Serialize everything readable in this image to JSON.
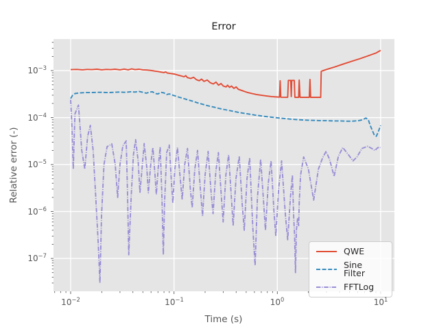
{
  "chart_data": {
    "type": "line",
    "title": "Error",
    "xlabel": "Time (s)",
    "ylabel": "Relative error (-)",
    "x_scale": "log",
    "y_scale": "log",
    "xlim": [
      0.00682,
      13.6
    ],
    "ylim": [
      2e-08,
      0.0047
    ],
    "grid": true,
    "legend_position": "lower right",
    "colors": {
      "figure_background": "#FFFFFF",
      "axes_background": "#E5E5E5",
      "grid": "#FFFFFF",
      "ticks": "#555555",
      "labels": "#555555",
      "title": "#1A1A1A",
      "legend_background": "#F1F1F1",
      "legend_border": "#CCCCCC",
      "legend_text": "#262626"
    },
    "x_tick_exponents": [
      -2,
      -1,
      0,
      1
    ],
    "y_tick_exponents": [
      -3,
      -4,
      -5,
      -6,
      -7
    ],
    "series": [
      {
        "name": "QWE",
        "color": "#E24A33",
        "linestyle": "solid",
        "points": [
          [
            0.01,
            0.00105
          ],
          [
            0.0115,
            0.00106
          ],
          [
            0.013,
            0.00104
          ],
          [
            0.0145,
            0.00106
          ],
          [
            0.016,
            0.00105
          ],
          [
            0.018,
            0.00107
          ],
          [
            0.02,
            0.00104
          ],
          [
            0.022,
            0.00106
          ],
          [
            0.0245,
            0.00105
          ],
          [
            0.027,
            0.00107
          ],
          [
            0.03,
            0.00104
          ],
          [
            0.033,
            0.00108
          ],
          [
            0.036,
            0.00104
          ],
          [
            0.039,
            0.00109
          ],
          [
            0.042,
            0.00105
          ],
          [
            0.046,
            0.00107
          ],
          [
            0.05,
            0.00104
          ],
          [
            0.055,
            0.00103
          ],
          [
            0.06,
            0.00101
          ],
          [
            0.065,
            0.00098
          ],
          [
            0.07,
            0.00096
          ],
          [
            0.075,
            0.00093
          ],
          [
            0.08,
            0.00091
          ],
          [
            0.083,
            0.00094
          ],
          [
            0.086,
            0.00089
          ],
          [
            0.09,
            0.00088
          ],
          [
            0.095,
            0.00086
          ],
          [
            0.1,
            0.00085
          ],
          [
            0.108,
            0.00081
          ],
          [
            0.115,
            0.00078
          ],
          [
            0.125,
            0.00074
          ],
          [
            0.13,
            0.00078
          ],
          [
            0.135,
            0.00071
          ],
          [
            0.145,
            0.00068
          ],
          [
            0.155,
            0.00072
          ],
          [
            0.165,
            0.00064
          ],
          [
            0.175,
            0.00061
          ],
          [
            0.185,
            0.00066
          ],
          [
            0.195,
            0.00059
          ],
          [
            0.21,
            0.00063
          ],
          [
            0.225,
            0.00055
          ],
          [
            0.24,
            0.00052
          ],
          [
            0.255,
            0.00057
          ],
          [
            0.27,
            0.00049
          ],
          [
            0.285,
            0.00053
          ],
          [
            0.3,
            0.00047
          ],
          [
            0.32,
            0.00045
          ],
          [
            0.33,
            0.00049
          ],
          [
            0.345,
            0.00044
          ],
          [
            0.36,
            0.00047
          ],
          [
            0.38,
            0.00042
          ],
          [
            0.4,
            0.00045
          ],
          [
            0.42,
            0.0004
          ],
          [
            0.45,
            0.00038
          ],
          [
            0.48,
            0.00036
          ],
          [
            0.52,
            0.00034
          ],
          [
            0.57,
            0.000325
          ],
          [
            0.63,
            0.00031
          ],
          [
            0.7,
            0.0003
          ],
          [
            0.78,
            0.00029
          ],
          [
            0.88,
            0.00028
          ],
          [
            1.0,
            0.000275
          ],
          [
            1.05,
            0.000273
          ],
          [
            1.065,
            0.00061
          ],
          [
            1.08,
            0.000272
          ],
          [
            1.26,
            0.000271
          ],
          [
            1.28,
            0.00062
          ],
          [
            1.35,
            0.00062
          ],
          [
            1.365,
            0.00028
          ],
          [
            1.38,
            0.00062
          ],
          [
            1.46,
            0.00062
          ],
          [
            1.48,
            0.00027
          ],
          [
            1.61,
            0.00027
          ],
          [
            1.63,
            0.00063
          ],
          [
            1.66,
            0.00027
          ],
          [
            2.04,
            0.00027
          ],
          [
            2.07,
            0.00065
          ],
          [
            2.1,
            0.00027
          ],
          [
            2.63,
            0.00027
          ],
          [
            2.66,
            0.00097
          ],
          [
            3.0,
            0.00106
          ],
          [
            3.6,
            0.0012
          ],
          [
            4.3,
            0.00137
          ],
          [
            5.2,
            0.00157
          ],
          [
            6.3,
            0.0018
          ],
          [
            7.6,
            0.00207
          ],
          [
            9.0,
            0.00237
          ],
          [
            10.0,
            0.0027
          ]
        ]
      },
      {
        "name": "Sine Filter",
        "color": "#348ABD",
        "linestyle": "dashed",
        "points": [
          [
            0.01,
            0.000255
          ],
          [
            0.0105,
            0.000305
          ],
          [
            0.011,
            0.000325
          ],
          [
            0.012,
            0.000335
          ],
          [
            0.014,
            0.00034
          ],
          [
            0.016,
            0.000342
          ],
          [
            0.018,
            0.000345
          ],
          [
            0.02,
            0.000345
          ],
          [
            0.023,
            0.00034
          ],
          [
            0.026,
            0.000345
          ],
          [
            0.03,
            0.00035
          ],
          [
            0.034,
            0.000345
          ],
          [
            0.038,
            0.000355
          ],
          [
            0.042,
            0.00035
          ],
          [
            0.046,
            0.00036
          ],
          [
            0.05,
            0.000345
          ],
          [
            0.054,
            0.00033
          ],
          [
            0.058,
            0.00035
          ],
          [
            0.062,
            0.000355
          ],
          [
            0.066,
            0.000325
          ],
          [
            0.07,
            0.00032
          ],
          [
            0.075,
            0.000345
          ],
          [
            0.08,
            0.000335
          ],
          [
            0.085,
            0.00031
          ],
          [
            0.09,
            0.00032
          ],
          [
            0.095,
            0.000305
          ],
          [
            0.1,
            0.000295
          ],
          [
            0.11,
            0.000275
          ],
          [
            0.12,
            0.00026
          ],
          [
            0.135,
            0.00024
          ],
          [
            0.15,
            0.000225
          ],
          [
            0.17,
            0.000205
          ],
          [
            0.19,
            0.000192
          ],
          [
            0.21,
            0.00018
          ],
          [
            0.24,
            0.000168
          ],
          [
            0.27,
            0.000158
          ],
          [
            0.3,
            0.00015
          ],
          [
            0.34,
            0.000142
          ],
          [
            0.38,
            0.000135
          ],
          [
            0.43,
            0.000128
          ],
          [
            0.48,
            0.000123
          ],
          [
            0.54,
            0.000118
          ],
          [
            0.61,
            0.000113
          ],
          [
            0.69,
            0.000109
          ],
          [
            0.78,
            0.000105
          ],
          [
            0.88,
            0.000102
          ],
          [
            1.0,
            9.9e-05
          ],
          [
            1.15,
            9.6e-05
          ],
          [
            1.32,
            9.3e-05
          ],
          [
            1.52,
            9.1e-05
          ],
          [
            1.75,
            8.9e-05
          ],
          [
            2.0,
            8.8e-05
          ],
          [
            2.3,
            8.7e-05
          ],
          [
            2.65,
            8.6e-05
          ],
          [
            3.0,
            8.6e-05
          ],
          [
            3.5,
            8.5e-05
          ],
          [
            4.0,
            8.5e-05
          ],
          [
            4.6,
            8.4e-05
          ],
          [
            5.3,
            8.4e-05
          ],
          [
            6.1,
            8.6e-05
          ],
          [
            6.7,
            9e-05
          ],
          [
            7.2,
            9.8e-05
          ],
          [
            7.6,
            9e-05
          ],
          [
            8.0,
            6.5e-05
          ],
          [
            8.7,
            4.2e-05
          ],
          [
            9.1,
            4e-05
          ],
          [
            9.5,
            5e-05
          ],
          [
            10.0,
            6.8e-05
          ]
        ]
      },
      {
        "name": "FFTLog",
        "color": "#988ED5",
        "linestyle": "dashdot",
        "points": [
          [
            0.01,
            0.00024
          ],
          [
            0.0103,
            6e-05
          ],
          [
            0.0106,
            8e-06
          ],
          [
            0.011,
            0.00012
          ],
          [
            0.0119,
            0.000185
          ],
          [
            0.0128,
            2e-05
          ],
          [
            0.0137,
            8e-06
          ],
          [
            0.0146,
            4e-05
          ],
          [
            0.0155,
            6.8e-05
          ],
          [
            0.0165,
            2e-05
          ],
          [
            0.0175,
            2e-06
          ],
          [
            0.0185,
            2e-07
          ],
          [
            0.0192,
            3e-08
          ],
          [
            0.0199,
            8e-07
          ],
          [
            0.021,
            1e-05
          ],
          [
            0.0225,
            2.4e-05
          ],
          [
            0.025,
            2.75e-05
          ],
          [
            0.027,
            1e-05
          ],
          [
            0.0285,
            2e-06
          ],
          [
            0.03,
            1e-05
          ],
          [
            0.032,
            2.5e-05
          ],
          [
            0.0345,
            3.2e-05
          ],
          [
            0.0355,
            2.5e-06
          ],
          [
            0.0365,
            1.2e-07
          ],
          [
            0.0385,
            2e-06
          ],
          [
            0.0405,
            1.6e-05
          ],
          [
            0.0425,
            3.4e-05
          ],
          [
            0.045,
            1.2e-05
          ],
          [
            0.0468,
            2.5e-06
          ],
          [
            0.049,
            8e-06
          ],
          [
            0.0515,
            2.8e-05
          ],
          [
            0.0545,
            9e-06
          ],
          [
            0.0565,
            2.5e-06
          ],
          [
            0.0595,
            1e-05
          ],
          [
            0.0625,
            2.3e-05
          ],
          [
            0.0655,
            6e-06
          ],
          [
            0.0675,
            2.3e-06
          ],
          [
            0.0705,
            9e-06
          ],
          [
            0.0735,
            2.4e-05
          ],
          [
            0.0765,
            2e-06
          ],
          [
            0.0788,
            1.2e-07
          ],
          [
            0.081,
            1.5e-06
          ],
          [
            0.085,
            1.8e-05
          ],
          [
            0.09,
            2.6e-05
          ],
          [
            0.0945,
            4e-06
          ],
          [
            0.0975,
            1.5e-06
          ],
          [
            0.102,
            8e-06
          ],
          [
            0.108,
            2.3e-05
          ],
          [
            0.115,
            5e-06
          ],
          [
            0.12,
            1.8e-06
          ],
          [
            0.127,
            1e-05
          ],
          [
            0.135,
            2.2e-05
          ],
          [
            0.144,
            3e-06
          ],
          [
            0.15,
            1.2e-06
          ],
          [
            0.159,
            8e-06
          ],
          [
            0.169,
            2e-05
          ],
          [
            0.18,
            3e-06
          ],
          [
            0.189,
            8e-07
          ],
          [
            0.2,
            6e-06
          ],
          [
            0.214,
            1.9e-05
          ],
          [
            0.229,
            2.5e-06
          ],
          [
            0.239,
            9e-07
          ],
          [
            0.254,
            7e-06
          ],
          [
            0.269,
            1.8e-05
          ],
          [
            0.288,
            2e-06
          ],
          [
            0.299,
            6e-07
          ],
          [
            0.318,
            6e-06
          ],
          [
            0.338,
            1.6e-05
          ],
          [
            0.359,
            2e-06
          ],
          [
            0.374,
            5e-07
          ],
          [
            0.398,
            5e-06
          ],
          [
            0.428,
            1.5e-05
          ],
          [
            0.457,
            1.5e-06
          ],
          [
            0.479,
            4e-07
          ],
          [
            0.509,
            5e-06
          ],
          [
            0.54,
            1.4e-05
          ],
          [
            0.578,
            5e-07
          ],
          [
            0.61,
            7e-08
          ],
          [
            0.642,
            2e-06
          ],
          [
            0.69,
            1.3e-05
          ],
          [
            0.738,
            1.5e-06
          ],
          [
            0.768,
            4e-07
          ],
          [
            0.818,
            4e-06
          ],
          [
            0.87,
            1.2e-05
          ],
          [
            0.928,
            1e-06
          ],
          [
            0.968,
            3e-07
          ],
          [
            1.03,
            3e-06
          ],
          [
            1.1,
            1.2e-05
          ],
          [
            1.2,
            8e-07
          ],
          [
            1.26,
            2.5e-07
          ],
          [
            1.34,
            2e-06
          ],
          [
            1.4,
            6e-06
          ],
          [
            1.44,
            8e-07
          ],
          [
            1.47,
            3e-07
          ],
          [
            1.5,
            5e-08
          ],
          [
            1.53,
            4e-07
          ],
          [
            1.57,
            7e-07
          ],
          [
            1.61,
            5e-07
          ],
          [
            1.63,
            1.5e-06
          ],
          [
            1.68,
            6e-06
          ],
          [
            1.8,
            1.45e-05
          ],
          [
            2.0,
            8e-06
          ],
          [
            2.25,
            1.75e-06
          ],
          [
            2.5,
            8e-06
          ],
          [
            2.75,
            1.4e-05
          ],
          [
            2.96,
            1.9e-05
          ],
          [
            3.2,
            1.3e-05
          ],
          [
            3.55,
            5.6e-06
          ],
          [
            3.9,
            1.5e-05
          ],
          [
            4.3,
            2.3e-05
          ],
          [
            4.8,
            1.7e-05
          ],
          [
            5.4,
            1.2e-05
          ],
          [
            5.9,
            1.45e-05
          ],
          [
            6.6,
            2.2e-05
          ],
          [
            7.5,
            2.45e-05
          ],
          [
            8.2,
            2.2e-05
          ],
          [
            8.8,
            2e-05
          ],
          [
            9.4,
            2.3e-05
          ],
          [
            10.0,
            2.3e-05
          ]
        ]
      }
    ]
  }
}
